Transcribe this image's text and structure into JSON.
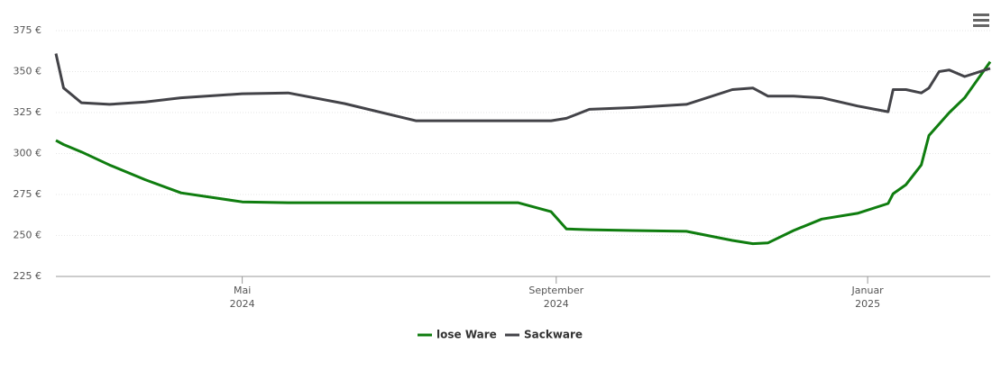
{
  "chart_data": {
    "type": "line",
    "x": [
      "2024-02-18",
      "2024-02-21",
      "2024-02-28",
      "2024-03-10",
      "2024-03-24",
      "2024-04-07",
      "2024-05-01",
      "2024-05-19",
      "2024-06-10",
      "2024-07-08",
      "2024-08-17",
      "2024-08-30",
      "2024-09-05",
      "2024-09-14",
      "2024-10-01",
      "2024-10-22",
      "2024-11-09",
      "2024-11-17",
      "2024-11-23",
      "2024-12-03",
      "2024-12-14",
      "2024-12-28",
      "2025-01-09",
      "2025-01-11",
      "2025-01-16",
      "2025-01-22",
      "2025-01-25",
      "2025-01-29",
      "2025-02-02",
      "2025-02-08",
      "2025-02-18"
    ],
    "series": [
      {
        "name": "lose Ware",
        "color": "#0f7d0f",
        "values": [
          308,
          305.5,
          301,
          293,
          284,
          276,
          270.5,
          270,
          270,
          270,
          270,
          264.5,
          254,
          253.5,
          253,
          252.5,
          247,
          245,
          245.5,
          253,
          260,
          263.5,
          269.5,
          275.5,
          281,
          293,
          311,
          318,
          325,
          334,
          356
        ]
      },
      {
        "name": "Sackware",
        "color": "#434348",
        "values": [
          361,
          340,
          331,
          330,
          331.5,
          334,
          336.5,
          337,
          330.5,
          320,
          320,
          320,
          321.5,
          327,
          328,
          330,
          339,
          340,
          335,
          335,
          334,
          329,
          325.5,
          339,
          339,
          337,
          340,
          350,
          351,
          347,
          352
        ]
      }
    ],
    "xlim": [
      "2024-02-18",
      "2025-02-18"
    ],
    "xticks": [
      {
        "value": "2024-05-01",
        "label": [
          "Mai",
          "2024"
        ]
      },
      {
        "value": "2024-09-01",
        "label": [
          "September",
          "2024"
        ]
      },
      {
        "value": "2025-01-01",
        "label": [
          "Januar",
          "2025"
        ]
      }
    ],
    "ylim": [
      225,
      375
    ],
    "yticks": [
      {
        "value": 225,
        "label": "225 €"
      },
      {
        "value": 250,
        "label": "250 €"
      },
      {
        "value": 275,
        "label": "275 €"
      },
      {
        "value": 300,
        "label": "300 €"
      },
      {
        "value": 325,
        "label": "325 €"
      },
      {
        "value": 350,
        "label": "350 €"
      },
      {
        "value": 375,
        "label": "375 €"
      }
    ],
    "grid": true,
    "legend": "bottom"
  }
}
